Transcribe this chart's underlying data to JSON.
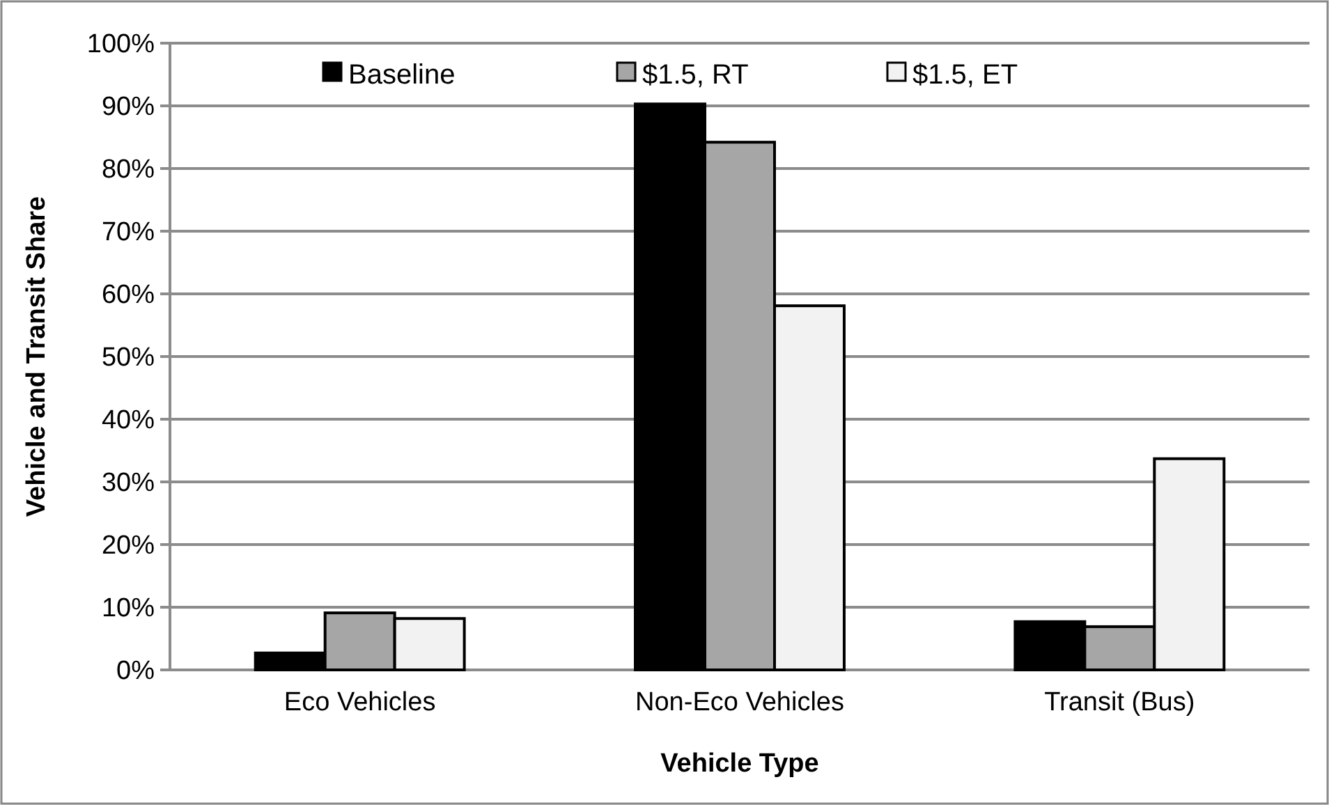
{
  "chart_data": {
    "type": "bar",
    "xlabel": "Vehicle Type",
    "ylabel": "Vehicle and Transit Share",
    "categories": [
      "Eco Vehicles",
      "Non-Eco Vehicles",
      "Transit (Bus)"
    ],
    "series": [
      {
        "name": "Baseline",
        "color": "#000000",
        "values": [
          2.7,
          90.3,
          7.7
        ]
      },
      {
        "name": "$1.5, RT",
        "color": "#a6a6a6",
        "values": [
          9.1,
          84.2,
          6.9
        ]
      },
      {
        "name": "$1.5, ET",
        "color": "#f2f2f2",
        "values": [
          8.2,
          58.1,
          33.7
        ]
      }
    ],
    "ylim": [
      0,
      100
    ],
    "yticks": [
      {
        "value": 0,
        "label": "0%"
      },
      {
        "value": 10,
        "label": "10%"
      },
      {
        "value": 20,
        "label": "20%"
      },
      {
        "value": 30,
        "label": "30%"
      },
      {
        "value": 40,
        "label": "40%"
      },
      {
        "value": 50,
        "label": "50%"
      },
      {
        "value": 60,
        "label": "60%"
      },
      {
        "value": 70,
        "label": "70%"
      },
      {
        "value": 80,
        "label": "80%"
      },
      {
        "value": 90,
        "label": "90%"
      },
      {
        "value": 100,
        "label": "100%"
      }
    ],
    "grid": "y",
    "legend": "top"
  }
}
